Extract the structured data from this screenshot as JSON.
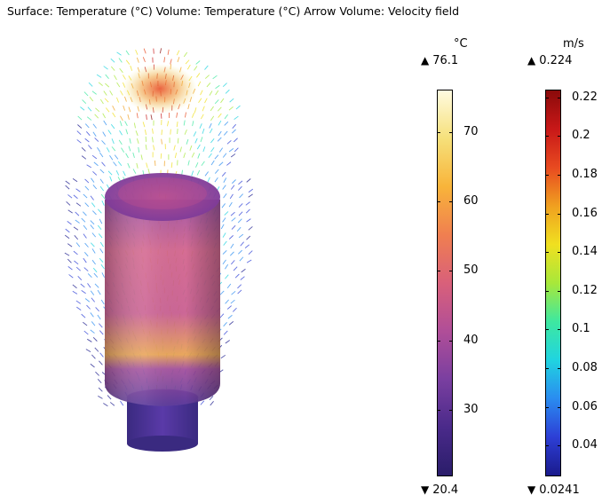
{
  "title": "Surface: Temperature (°C)  Volume: Temperature (°C)  Arrow Volume: Velocity field",
  "colors": {
    "thermal": [
      "#2a1d6a",
      "#4a2a8a",
      "#7a3fa0",
      "#b04e98",
      "#d9607a",
      "#f07f50",
      "#f8b43a",
      "#f6e07a",
      "#fffbe0"
    ],
    "rainbow": [
      "#1a1a8c",
      "#2d3fd6",
      "#2a8cf0",
      "#20d4e0",
      "#3ee8a0",
      "#a8e83a",
      "#f0e020",
      "#f0a020",
      "#e84a20",
      "#c81818",
      "#8a0a0a"
    ]
  },
  "colorbars": [
    {
      "name": "temperature",
      "unit": "°C",
      "max_label": "76.1",
      "min_label": "20.4",
      "max_symbol": "▲",
      "min_symbol": "▼",
      "min": 20.4,
      "max": 76.1,
      "ticks": [
        "70",
        "60",
        "50",
        "40",
        "30"
      ],
      "tick_values": [
        70,
        60,
        50,
        40,
        30
      ]
    },
    {
      "name": "velocity",
      "unit": "m/s",
      "max_label": "0.224",
      "min_label": "0.0241",
      "max_symbol": "▲",
      "min_symbol": "▼",
      "min": 0.0241,
      "max": 0.224,
      "ticks": [
        "0.22",
        "0.2",
        "0.18",
        "0.16",
        "0.14",
        "0.12",
        "0.1",
        "0.08",
        "0.06",
        "0.04"
      ],
      "tick_values": [
        0.22,
        0.2,
        0.18,
        0.16,
        0.14,
        0.12,
        0.1,
        0.08,
        0.06,
        0.04
      ]
    }
  ]
}
